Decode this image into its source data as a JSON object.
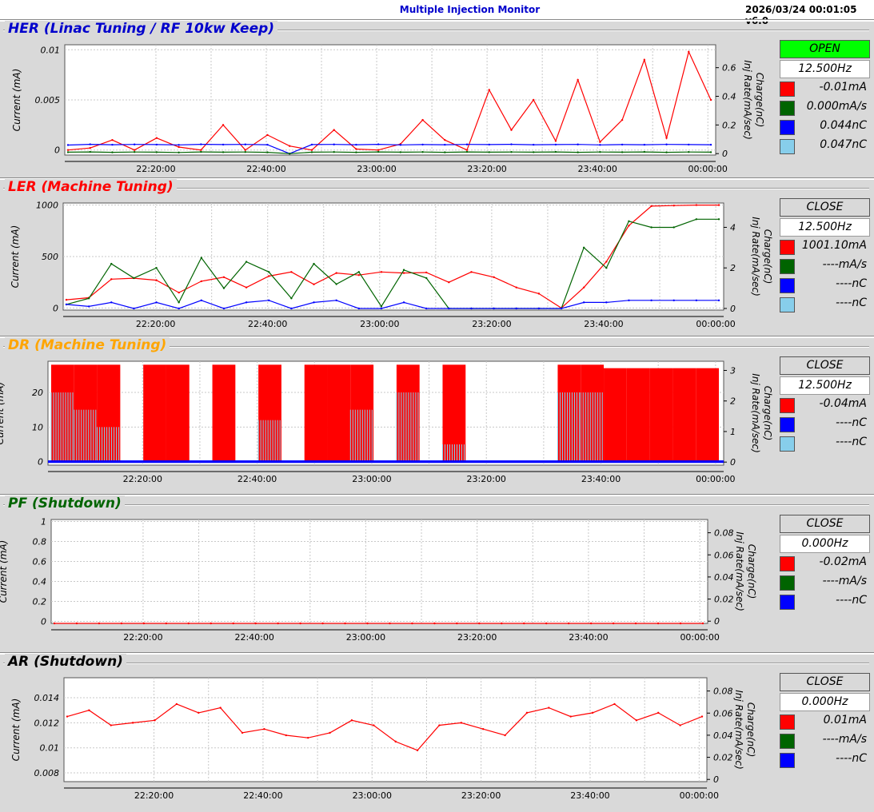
{
  "header": {
    "title": "Multiple Injection Monitor",
    "datetime": "2026/03/24 00:01:05   v6.0"
  },
  "colors": {
    "current": "#ff0000",
    "rate": "#006400",
    "charge_blue": "#0000ff",
    "charge_light": "#87ceeb"
  },
  "panels": [
    {
      "id": "her",
      "title": "HER  (Linac Tuning / RF 10kw Keep)",
      "title_color": "#0000cc",
      "status": "OPEN",
      "frequency": "12.500Hz",
      "legend": [
        {
          "color": "#ff0000",
          "value": "-0.01mA"
        },
        {
          "color": "#006400",
          "value": "0.000mA/s"
        },
        {
          "color": "#0000ff",
          "value": "0.044nC"
        },
        {
          "color": "#87ceeb",
          "value": "0.047nC"
        }
      ],
      "chart_data": {
        "type": "line",
        "ylabel": "Current (mA)",
        "ylabel_right": "Charge(nC)\nInj Rate(mA/sec)",
        "yticks_left": [
          "0.01",
          "0.005",
          "0"
        ],
        "yticks_right": [
          "0.6",
          "0.4",
          "0.2",
          "0"
        ],
        "ylim_left": [
          -0.0005,
          0.0105
        ],
        "ylim_right": [
          -0.01,
          0.76
        ],
        "xticks": [
          "22:20:00",
          "22:40:00",
          "23:00:00",
          "23:20:00",
          "23:40:00",
          "00:00:00"
        ],
        "series": [
          {
            "color": "#ff0000",
            "axis": "left",
            "values": [
              0,
              0.0002,
              0.001,
              0,
              0.0012,
              0.0003,
              0,
              0.0025,
              0,
              0.0015,
              0.0004,
              0,
              0.002,
              0.0001,
              0,
              0.0006,
              0.003,
              0.001,
              0,
              0.006,
              0.002,
              0.005,
              0.0009,
              0.007,
              0.0008,
              0.003,
              0.009,
              0.0012,
              0.0098,
              0.005
            ]
          },
          {
            "color": "#0000ff",
            "axis": "right",
            "values": [
              0.06,
              0.065,
              0.062,
              0.064,
              0.063,
              0.061,
              0.065,
              0.063,
              0.064,
              0.062,
              0.0,
              0.063,
              0.064,
              0.062,
              0.065,
              0.061,
              0.063,
              0.062,
              0.064,
              0.063,
              0.065,
              0.062,
              0.063,
              0.064,
              0.061,
              0.063,
              0.062,
              0.064,
              0.063,
              0.062
            ]
          },
          {
            "color": "#006400",
            "axis": "right",
            "values": [
              0.01,
              0.012,
              0.009,
              0.011,
              0.01,
              0.008,
              0.012,
              0.01,
              0.011,
              0.009,
              0.0,
              0.01,
              0.011,
              0.009,
              0.012,
              0.01,
              0.011,
              0.009,
              0.012,
              0.01,
              0.011,
              0.01,
              0.012,
              0.009,
              0.011,
              0.01,
              0.012,
              0.009,
              0.011,
              0.01
            ]
          }
        ]
      }
    },
    {
      "id": "ler",
      "title": "LER  (Machine Tuning)",
      "title_color": "#ff0000",
      "status": "CLOSE",
      "frequency": "12.500Hz",
      "legend": [
        {
          "color": "#ff0000",
          "value": "1001.10mA"
        },
        {
          "color": "#006400",
          "value": "----mA/s"
        },
        {
          "color": "#0000ff",
          "value": "----nC"
        },
        {
          "color": "#87ceeb",
          "value": "----nC"
        }
      ],
      "chart_data": {
        "type": "line",
        "ylabel": "Current (mA)",
        "ylabel_right": "Charge(nC)\nInj Rate(mA/sec)",
        "yticks_left": [
          "1000",
          "500",
          "0"
        ],
        "yticks_right": [
          "4",
          "2",
          "0"
        ],
        "ylim_left": [
          -20,
          1020
        ],
        "ylim_right": [
          -0.08,
          5.2
        ],
        "xticks": [
          "22:20:00",
          "22:40:00",
          "23:00:00",
          "23:20:00",
          "23:40:00",
          "00:00:00"
        ],
        "series": [
          {
            "color": "#ff0000",
            "axis": "left",
            "values": [
              80,
              100,
              280,
              290,
              270,
              150,
              260,
              300,
              200,
              310,
              350,
              230,
              340,
              320,
              350,
              340,
              345,
              250,
              350,
              300,
              200,
              140,
              0,
              200,
              450,
              800,
              990,
              995,
              1000,
              1000
            ]
          },
          {
            "color": "#006400",
            "axis": "right",
            "values": [
              0.2,
              0.5,
              2.2,
              1.5,
              2.0,
              0.3,
              2.5,
              1.0,
              2.3,
              1.8,
              0.5,
              2.2,
              1.2,
              1.8,
              0.1,
              1.9,
              1.5,
              0.0,
              0.0,
              0.0,
              0.0,
              0.0,
              0.0,
              3.0,
              2.0,
              4.3,
              4.0,
              4.0,
              4.4,
              4.4
            ]
          },
          {
            "color": "#0000ff",
            "axis": "right",
            "values": [
              0.2,
              0.1,
              0.3,
              0.0,
              0.3,
              0.0,
              0.4,
              0.0,
              0.3,
              0.4,
              0.0,
              0.3,
              0.4,
              0.0,
              0.0,
              0.3,
              0.0,
              0.0,
              0.0,
              0.0,
              0.0,
              0.0,
              0.0,
              0.3,
              0.3,
              0.4,
              0.4,
              0.4,
              0.4,
              0.4
            ]
          }
        ]
      }
    },
    {
      "id": "dr",
      "title": "DR  (Machine Tuning)",
      "title_color": "#ffa500",
      "status": "CLOSE",
      "frequency": "12.500Hz",
      "legend": [
        {
          "color": "#ff0000",
          "value": "-0.04mA"
        },
        {
          "color": "#0000ff",
          "value": "----nC"
        },
        {
          "color": "#87ceeb",
          "value": "----nC"
        }
      ],
      "chart_data": {
        "type": "area",
        "ylabel": "Current (mA)",
        "ylabel_right": "Charge(nC)\nInj Rate(mA/sec)",
        "yticks_left": [
          "20",
          "10",
          "0"
        ],
        "yticks_right": [
          "3",
          "2",
          "1",
          "0"
        ],
        "ylim_left": [
          -1,
          29
        ],
        "ylim_right": [
          -0.1,
          3.3
        ],
        "xticks": [
          "22:20:00",
          "22:40:00",
          "23:00:00",
          "23:20:00",
          "23:40:00",
          "00:00:00"
        ],
        "series": [
          {
            "color": "#ff0000",
            "axis": "left",
            "values": [
              28,
              28,
              28,
              0,
              28,
              28,
              0,
              28,
              0,
              28,
              0,
              28,
              28,
              28,
              0,
              28,
              0,
              28,
              0,
              0,
              0,
              0,
              28,
              28,
              27,
              27,
              27,
              27,
              27,
              27
            ]
          },
          {
            "color": "#87ceeb",
            "axis": "left",
            "values": [
              20,
              15,
              10,
              0,
              0,
              0,
              0,
              0,
              0,
              12,
              0,
              0,
              0,
              15,
              0,
              20,
              0,
              5,
              0,
              0,
              0,
              0,
              20,
              20,
              0,
              0,
              0,
              0,
              0,
              0
            ]
          },
          {
            "color": "#0000ff",
            "axis": "left",
            "values": [
              0,
              0,
              0,
              0,
              0,
              0,
              0,
              0,
              0,
              0,
              0,
              0,
              0,
              0,
              0,
              0,
              0,
              0,
              0,
              0,
              0,
              0,
              0,
              0,
              0,
              0,
              0,
              0,
              0,
              0
            ]
          }
        ]
      }
    },
    {
      "id": "pf",
      "title": "PF  (Shutdown)",
      "title_color": "#006400",
      "status": "CLOSE",
      "frequency": "0.000Hz",
      "legend": [
        {
          "color": "#ff0000",
          "value": "-0.02mA"
        },
        {
          "color": "#006400",
          "value": "----mA/s"
        },
        {
          "color": "#0000ff",
          "value": "----nC"
        }
      ],
      "chart_data": {
        "type": "line",
        "ylabel": "Current (mA)",
        "ylabel_right": "Charge(nC)\nInj Rate(mA/sec)",
        "yticks_left": [
          "1",
          "0.8",
          "0.6",
          "0.4",
          "0.2",
          "0"
        ],
        "yticks_right": [
          "0.08",
          "0.06",
          "0.04",
          "0.02",
          "0"
        ],
        "ylim_left": [
          -0.02,
          1.02
        ],
        "ylim_right": [
          -0.002,
          0.092
        ],
        "xticks": [
          "22:20:00",
          "22:40:00",
          "23:00:00",
          "23:20:00",
          "23:40:00",
          "00:00:00"
        ],
        "series": [
          {
            "color": "#ff0000",
            "axis": "left",
            "values": [
              -0.02,
              -0.02,
              -0.02,
              -0.02,
              -0.02,
              -0.02,
              -0.02,
              -0.02,
              -0.02,
              -0.02,
              -0.02,
              -0.02,
              -0.02,
              -0.02,
              -0.02,
              -0.02,
              -0.02,
              -0.02,
              -0.02,
              -0.02,
              -0.02,
              -0.02,
              -0.02,
              -0.02,
              -0.02,
              -0.02,
              -0.02,
              -0.02,
              -0.02,
              -0.02
            ]
          }
        ]
      }
    },
    {
      "id": "ar",
      "title": "AR  (Shutdown)",
      "title_color": "#000000",
      "status": "CLOSE",
      "frequency": "0.000Hz",
      "legend": [
        {
          "color": "#ff0000",
          "value": "0.01mA"
        },
        {
          "color": "#006400",
          "value": "----mA/s"
        },
        {
          "color": "#0000ff",
          "value": "----nC"
        }
      ],
      "chart_data": {
        "type": "line",
        "ylabel": "Current (mA)",
        "ylabel_right": "Charge(nC)\nInj Rate(mA/sec)",
        "yticks_left": [
          "0.014",
          "0.012",
          "0.01",
          "0.008"
        ],
        "yticks_right": [
          "0.08",
          "0.06",
          "0.04",
          "0.02",
          "0"
        ],
        "ylim_left": [
          0.0073,
          0.0156
        ],
        "ylim_right": [
          -0.002,
          0.092
        ],
        "xticks": [
          "22:20:00",
          "22:40:00",
          "23:00:00",
          "23:20:00",
          "23:40:00",
          "00:00:00"
        ],
        "series": [
          {
            "color": "#ff0000",
            "axis": "left",
            "values": [
              0.0125,
              0.013,
              0.0118,
              0.012,
              0.0122,
              0.0135,
              0.0128,
              0.0132,
              0.0112,
              0.0115,
              0.011,
              0.0108,
              0.0112,
              0.0122,
              0.0118,
              0.0105,
              0.0098,
              0.0118,
              0.012,
              0.0115,
              0.011,
              0.0128,
              0.0132,
              0.0125,
              0.0128,
              0.0135,
              0.0122,
              0.0128,
              0.0118,
              0.0125
            ]
          }
        ]
      }
    }
  ]
}
